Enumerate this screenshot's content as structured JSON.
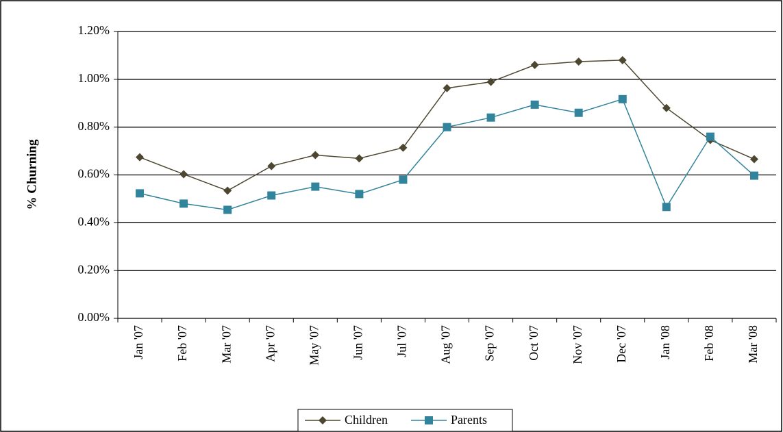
{
  "chart_data": {
    "type": "line",
    "y_label": "% Churning",
    "categories": [
      "Jan '07",
      "Feb '07",
      "Mar '07",
      "Apr '07",
      "May '07",
      "Jun '07",
      "Jul '07",
      "Aug '07",
      "Sep '07",
      "Oct '07",
      "Nov '07",
      "Dec '07",
      "Jan '08",
      "Feb '08",
      "Mar '08"
    ],
    "series": [
      {
        "name": "Children",
        "color": "#4d4630",
        "marker": "diamond",
        "values": [
          0.674,
          0.603,
          0.534,
          0.637,
          0.683,
          0.669,
          0.714,
          0.963,
          0.989,
          1.06,
          1.074,
          1.08,
          0.88,
          0.746,
          0.666
        ]
      },
      {
        "name": "Parents",
        "color": "#31849b",
        "marker": "square",
        "values": [
          0.523,
          0.48,
          0.454,
          0.514,
          0.551,
          0.52,
          0.58,
          0.8,
          0.84,
          0.894,
          0.86,
          0.917,
          0.466,
          0.76,
          0.597
        ]
      }
    ],
    "ylim": [
      0,
      1.2
    ],
    "yticks": [
      {
        "value": 0,
        "label": "0.00%"
      },
      {
        "value": 0.2,
        "label": "0.20%"
      },
      {
        "value": 0.4,
        "label": "0.40%"
      },
      {
        "value": 0.6,
        "label": "0.60%"
      },
      {
        "value": 0.8,
        "label": "0.80%"
      },
      {
        "value": 1.0,
        "label": "1.00%"
      },
      {
        "value": 1.2,
        "label": "1.20%"
      }
    ],
    "grid": true,
    "legend": "bottom"
  }
}
